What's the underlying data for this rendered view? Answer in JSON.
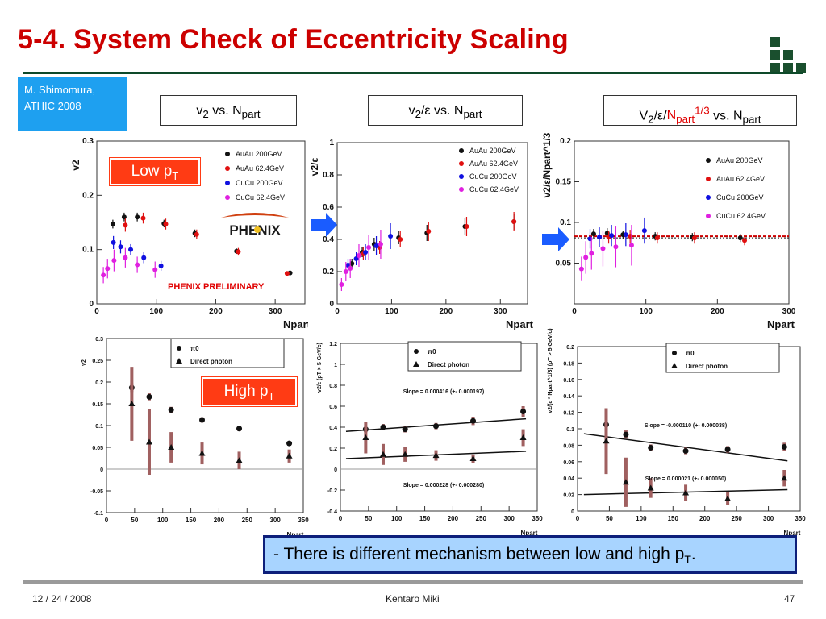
{
  "slide": {
    "title": "5-4. System Check of Eccentricity Scaling",
    "author": {
      "line1": "M. Shimomura,",
      "line2": "ATHIC 2008"
    },
    "col_headers": [
      {
        "pre": "v",
        "sub": "2",
        "post": " vs. N",
        "sub2": "part"
      },
      {
        "pre": "v",
        "sub": "2",
        "mid": "/ε vs. N",
        "sub2": "part"
      },
      {
        "pre": "V",
        "sub": "2",
        "mid": "/ε/",
        "red": "N",
        "redsub": "part",
        "redsup": "1/3",
        "post": " vs. N",
        "sub2": "part"
      }
    ],
    "low_pt_badge": {
      "text": "Low p",
      "sub": "T"
    },
    "high_pt_badge": {
      "text": "High p",
      "sub": "T"
    },
    "phenix_logo": "PHENIX",
    "phenix_preliminary": "PHENIX PRELIMINARY",
    "conclusion": {
      "text": "- There is different mechanism between low and high p",
      "sub": "T",
      "end": "."
    },
    "footer": {
      "date": "12 / 24 / 2008",
      "presenter": "Kentaro Miki",
      "page": "47"
    },
    "colors": {
      "title": "#cc0000",
      "author_bg": "#1ea0f0",
      "badge": "#ff3b14",
      "conclusion_bg": "#a8d4ff",
      "conclusion_border": "#0d1f7a",
      "arrow": "#1a5cff"
    }
  },
  "chart_data": [
    {
      "type": "scatter",
      "ylabel": "v2",
      "xlabel": "Npart",
      "xlim": [
        0,
        350
      ],
      "ylim": [
        0,
        0.3
      ],
      "xticks": [
        0,
        100,
        200,
        300
      ],
      "yticks": [
        0,
        0.1,
        0.2,
        0.3
      ],
      "legend": [
        "AuAu 200GeV",
        "AuAu 62.4GeV",
        "CuCu 200GeV",
        "CuCu 62.4GeV"
      ],
      "series": [
        {
          "name": "AuAu 200GeV",
          "color": "#111111",
          "x": [
            27,
            46,
            68,
            113,
            165,
            235,
            325
          ],
          "y": [
            0.147,
            0.16,
            0.16,
            0.148,
            0.13,
            0.097,
            0.057
          ],
          "err": [
            0.008,
            0.008,
            0.008,
            0.007,
            0.007,
            0.005,
            0.004
          ]
        },
        {
          "name": "AuAu 62.4GeV",
          "color": "#e01010",
          "x": [
            48,
            78,
            116,
            168,
            238,
            320
          ],
          "y": [
            0.145,
            0.158,
            0.147,
            0.128,
            0.096,
            0.056
          ],
          "err": [
            0.012,
            0.01,
            0.01,
            0.009,
            0.007,
            0.004
          ]
        },
        {
          "name": "CuCu 200GeV",
          "color": "#1010e0",
          "x": [
            28,
            40,
            57,
            79,
            108
          ],
          "y": [
            0.113,
            0.105,
            0.1,
            0.085,
            0.07
          ],
          "err": [
            0.012,
            0.012,
            0.01,
            0.01,
            0.009
          ]
        },
        {
          "name": "CuCu 62.4GeV",
          "color": "#e020e0",
          "x": [
            11,
            18,
            29,
            48,
            68,
            98
          ],
          "y": [
            0.053,
            0.065,
            0.08,
            0.085,
            0.072,
            0.063
          ],
          "err": [
            0.015,
            0.018,
            0.02,
            0.018,
            0.015,
            0.015
          ]
        }
      ]
    },
    {
      "type": "scatter",
      "ylabel": "v2/ε",
      "xlabel": "Npart",
      "xlim": [
        0,
        350
      ],
      "ylim": [
        0,
        1
      ],
      "xticks": [
        0,
        100,
        200,
        300
      ],
      "yticks": [
        0,
        0.2,
        0.4,
        0.6,
        0.8,
        1
      ],
      "legend": [
        "AuAu 200GeV",
        "AuAu 62.4GeV",
        "CuCu 200GeV",
        "CuCu 62.4GeV"
      ],
      "series": [
        {
          "name": "AuAu 200GeV",
          "color": "#111111",
          "x": [
            27,
            46,
            68,
            113,
            165,
            235,
            325
          ],
          "y": [
            0.25,
            0.32,
            0.37,
            0.41,
            0.44,
            0.48,
            0.51
          ],
          "err": [
            0.03,
            0.03,
            0.04,
            0.04,
            0.05,
            0.05,
            0.05
          ]
        },
        {
          "name": "AuAu 62.4GeV",
          "color": "#e01010",
          "x": [
            48,
            78,
            116,
            168,
            238,
            325
          ],
          "y": [
            0.31,
            0.35,
            0.4,
            0.45,
            0.48,
            0.51
          ],
          "err": [
            0.04,
            0.04,
            0.05,
            0.06,
            0.06,
            0.06
          ]
        },
        {
          "name": "CuCu 200GeV",
          "color": "#1010e0",
          "x": [
            20,
            35,
            52,
            72,
            98
          ],
          "y": [
            0.24,
            0.28,
            0.32,
            0.36,
            0.42
          ],
          "err": [
            0.04,
            0.04,
            0.05,
            0.06,
            0.08
          ]
        },
        {
          "name": "CuCu 62.4GeV",
          "color": "#e020e0",
          "x": [
            8,
            16,
            24,
            40,
            58,
            80
          ],
          "y": [
            0.12,
            0.2,
            0.22,
            0.3,
            0.35,
            0.37
          ],
          "err": [
            0.04,
            0.06,
            0.06,
            0.07,
            0.08,
            0.09
          ]
        }
      ]
    },
    {
      "type": "scatter",
      "ylabel": "v2/ε/Npart^1/3",
      "xlabel": "Npart",
      "xlim": [
        0,
        300
      ],
      "ylim": [
        0,
        0.2
      ],
      "xticks": [
        0,
        100,
        200,
        300
      ],
      "yticks": [
        0.05,
        0.1,
        0.15,
        0.2
      ],
      "legend": [
        "AuAu 200GeV",
        "AuAu 62.4GeV",
        "CuCu 200GeV",
        "CuCu 62.4GeV"
      ],
      "series": [
        {
          "name": "AuAu 200GeV",
          "color": "#111111",
          "x": [
            27,
            46,
            68,
            113,
            165,
            232
          ],
          "y": [
            0.086,
            0.087,
            0.085,
            0.083,
            0.082,
            0.081
          ],
          "err": [
            0.006,
            0.006,
            0.005,
            0.005,
            0.005,
            0.005
          ]
        },
        {
          "name": "AuAu 62.4GeV",
          "color": "#e01010",
          "x": [
            48,
            78,
            116,
            168,
            238
          ],
          "y": [
            0.082,
            0.083,
            0.081,
            0.081,
            0.078
          ],
          "err": [
            0.008,
            0.008,
            0.007,
            0.007,
            0.006
          ]
        },
        {
          "name": "CuCu 200GeV",
          "color": "#1010e0",
          "x": [
            22,
            35,
            52,
            72,
            98
          ],
          "y": [
            0.08,
            0.082,
            0.084,
            0.085,
            0.09
          ],
          "err": [
            0.012,
            0.012,
            0.013,
            0.014,
            0.016
          ]
        },
        {
          "name": "CuCu 62.4GeV",
          "color": "#e020e0",
          "x": [
            10,
            16,
            24,
            40,
            58,
            80
          ],
          "y": [
            0.043,
            0.057,
            0.062,
            0.068,
            0.07,
            0.072
          ],
          "err": [
            0.015,
            0.02,
            0.02,
            0.022,
            0.025,
            0.025
          ]
        }
      ],
      "fit_line": 0.083
    },
    {
      "type": "scatter",
      "ylabel": "v2",
      "xlabel": "Npart",
      "xlim": [
        0,
        350
      ],
      "ylim": [
        -0.1,
        0.3
      ],
      "xticks": [
        0,
        50,
        100,
        150,
        200,
        250,
        300,
        350
      ],
      "yticks": [
        -0.1,
        -0.05,
        0,
        0.05,
        0.1,
        0.15,
        0.2,
        0.25,
        0.3
      ],
      "legend": [
        "π0",
        "Direct photon"
      ],
      "series": [
        {
          "name": "π0",
          "marker": "circle",
          "x": [
            45,
            76,
            115,
            170,
            236,
            325
          ],
          "y": [
            0.187,
            0.166,
            0.136,
            0.113,
            0.093,
            0.059
          ],
          "err": [
            0.01,
            0.008,
            0.007,
            0.006,
            0.006,
            0.005
          ]
        },
        {
          "name": "Direct photon",
          "marker": "triangle",
          "x": [
            45,
            76,
            115,
            170,
            236,
            325
          ],
          "y": [
            0.15,
            0.062,
            0.05,
            0.036,
            0.02,
            0.03
          ],
          "err": [
            0.085,
            0.075,
            0.035,
            0.025,
            0.02,
            0.015
          ]
        }
      ]
    },
    {
      "type": "scatter",
      "ylabel": "v2/ε (pT > 5 GeV/c)",
      "xlabel": "Npart",
      "xlim": [
        0,
        350
      ],
      "ylim": [
        -0.4,
        1.2
      ],
      "xticks": [
        0,
        50,
        100,
        150,
        200,
        250,
        300,
        350
      ],
      "yticks": [
        -0.4,
        -0.2,
        0,
        0.2,
        0.4,
        0.6,
        0.8,
        1,
        1.2
      ],
      "legend": [
        "π0",
        "Direct photon"
      ],
      "series": [
        {
          "name": "π0",
          "marker": "circle",
          "x": [
            45,
            76,
            115,
            170,
            236,
            325
          ],
          "y": [
            0.38,
            0.4,
            0.38,
            0.41,
            0.46,
            0.55
          ],
          "err": [
            0.03,
            0.03,
            0.03,
            0.03,
            0.04,
            0.05
          ]
        },
        {
          "name": "Direct photon",
          "marker": "triangle",
          "x": [
            45,
            76,
            115,
            170,
            236,
            325
          ],
          "y": [
            0.3,
            0.14,
            0.14,
            0.13,
            0.1,
            0.3
          ],
          "err": [
            0.15,
            0.1,
            0.07,
            0.05,
            0.04,
            0.08
          ]
        }
      ],
      "annotations": [
        "Slope = 0.000416 (+- 0.000197)",
        "Slope = 0.000228 (+- 0.000280)"
      ],
      "fits": [
        {
          "y0": 0.36,
          "y1": 0.48
        },
        {
          "y0": 0.1,
          "y1": 0.17
        }
      ]
    },
    {
      "type": "scatter",
      "ylabel": "v2/(ε * Npart^1/3) (pT > 5 GeV/c)",
      "xlabel": "Npart",
      "xlim": [
        0,
        350
      ],
      "ylim": [
        0,
        0.2
      ],
      "xticks": [
        0,
        50,
        100,
        150,
        200,
        250,
        300,
        350
      ],
      "yticks": [
        0,
        0.02,
        0.04,
        0.06,
        0.08,
        0.1,
        0.12,
        0.14,
        0.16,
        0.18,
        0.2
      ],
      "legend": [
        "π0",
        "Direct photon"
      ],
      "series": [
        {
          "name": "π0",
          "marker": "circle",
          "x": [
            45,
            76,
            115,
            170,
            236,
            325
          ],
          "y": [
            0.105,
            0.093,
            0.077,
            0.073,
            0.075,
            0.078
          ],
          "err": [
            0.006,
            0.005,
            0.004,
            0.004,
            0.004,
            0.005
          ]
        },
        {
          "name": "Direct photon",
          "marker": "triangle",
          "x": [
            45,
            76,
            115,
            170,
            236,
            325
          ],
          "y": [
            0.085,
            0.035,
            0.028,
            0.022,
            0.015,
            0.04
          ],
          "err": [
            0.04,
            0.03,
            0.012,
            0.01,
            0.008,
            0.01
          ]
        }
      ],
      "annotations": [
        "Slope = -0.000110 (+- 0.000038)",
        "Slope = 0.000021 (+- 0.000050)"
      ],
      "fits": [
        {
          "y0": 0.094,
          "y1": 0.061
        },
        {
          "y0": 0.02,
          "y1": 0.026
        }
      ]
    }
  ]
}
